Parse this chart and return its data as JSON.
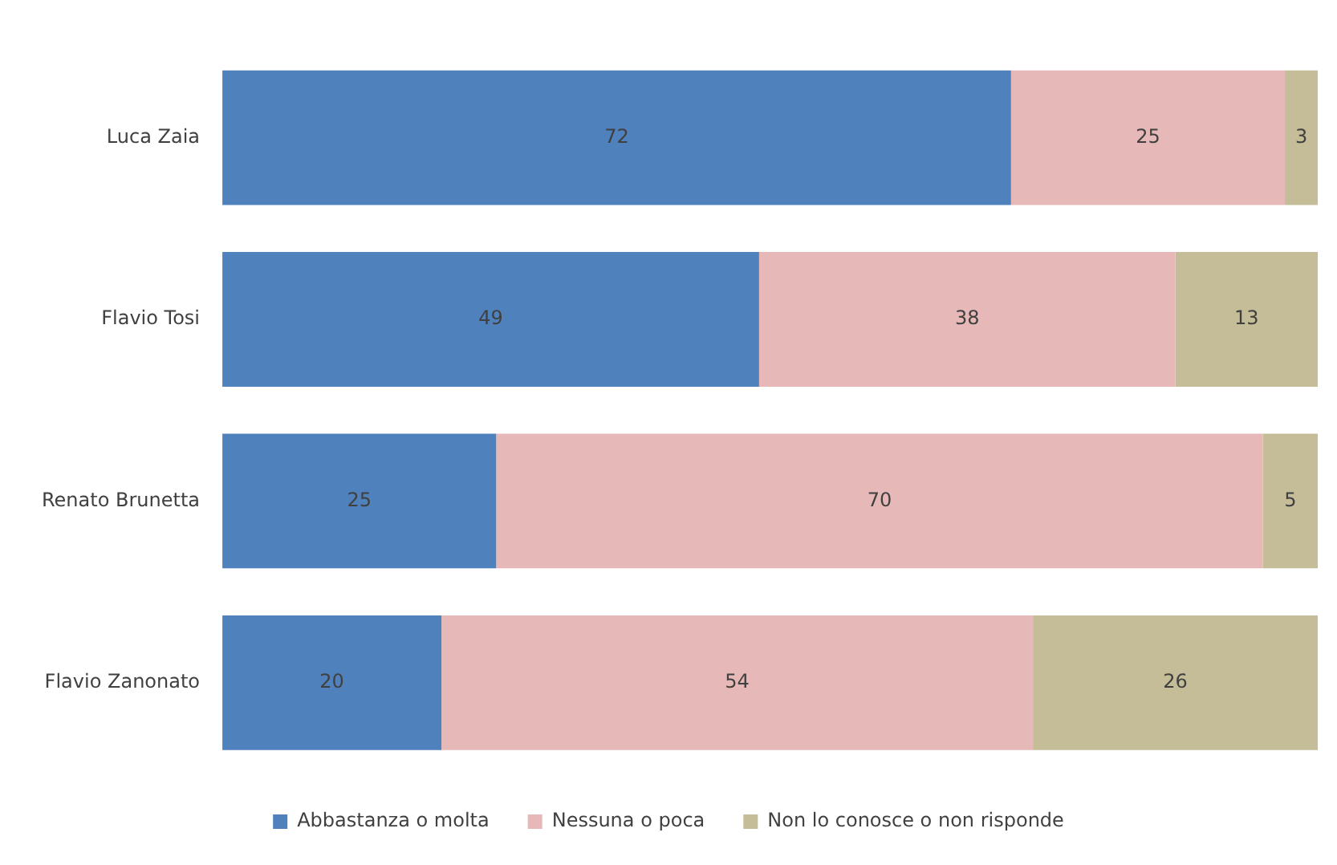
{
  "chart_data": {
    "type": "bar",
    "orientation": "horizontal",
    "stacked": true,
    "categories": [
      "Luca Zaia",
      "Flavio Tosi",
      "Renato Brunetta",
      "Flavio Zanonato"
    ],
    "series": [
      {
        "name": "Abbastanza o molta",
        "color": "#4f81bd",
        "values": [
          72,
          49,
          25,
          20
        ]
      },
      {
        "name": "Nessuna o poca",
        "color": "#e6b9b8",
        "values": [
          25,
          38,
          70,
          54
        ]
      },
      {
        "name": "Non lo conosce o non risponde",
        "color": "#c4bd97",
        "values": [
          3,
          13,
          5,
          26
        ]
      }
    ],
    "xlim": [
      0,
      100
    ],
    "data_labels": true,
    "legend": "bottom",
    "grid": false,
    "tick_labels": "y"
  }
}
